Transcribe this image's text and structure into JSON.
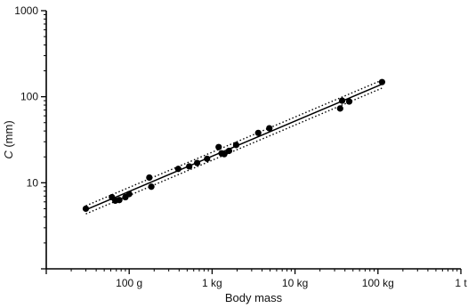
{
  "chart_data": {
    "type": "scatter",
    "xlabel": "Body mass",
    "ylabel": "C (mm)",
    "ylabel_italic": "C",
    "ylabel_rest": " (mm)",
    "x_scale": "log",
    "y_scale": "log",
    "xlim_grams": [
      10,
      1000000
    ],
    "ylim": [
      1,
      1000
    ],
    "x_ticks": [
      {
        "value": 100,
        "label": "100 g"
      },
      {
        "value": 1000,
        "label": "1 kg"
      },
      {
        "value": 10000,
        "label": "10 kg"
      },
      {
        "value": 100000,
        "label": "100 kg"
      },
      {
        "value": 1000000,
        "label": "1 t"
      }
    ],
    "y_ticks": [
      {
        "value": 10,
        "label": "10"
      },
      {
        "value": 100,
        "label": "100"
      },
      {
        "value": 1000,
        "label": "1000"
      }
    ],
    "grid": false,
    "points": [
      {
        "x": 30,
        "y": 5.0
      },
      {
        "x": 62,
        "y": 6.8
      },
      {
        "x": 68,
        "y": 6.2
      },
      {
        "x": 76,
        "y": 6.3
      },
      {
        "x": 90,
        "y": 6.8
      },
      {
        "x": 100,
        "y": 7.4
      },
      {
        "x": 175,
        "y": 11.5
      },
      {
        "x": 185,
        "y": 9.0
      },
      {
        "x": 390,
        "y": 14.5
      },
      {
        "x": 530,
        "y": 15.5
      },
      {
        "x": 660,
        "y": 17.0
      },
      {
        "x": 870,
        "y": 19.0
      },
      {
        "x": 1200,
        "y": 26.0
      },
      {
        "x": 1300,
        "y": 22.0
      },
      {
        "x": 1400,
        "y": 21.5
      },
      {
        "x": 1600,
        "y": 23.5
      },
      {
        "x": 1950,
        "y": 27.5
      },
      {
        "x": 3600,
        "y": 38.0
      },
      {
        "x": 4900,
        "y": 43.0
      },
      {
        "x": 35000,
        "y": 73.0
      },
      {
        "x": 37000,
        "y": 90.0
      },
      {
        "x": 45000,
        "y": 88.0
      },
      {
        "x": 112000,
        "y": 148.0
      }
    ],
    "fit_line": {
      "x": [
        30,
        112000
      ],
      "y": [
        4.85,
        140
      ]
    },
    "upper_band": {
      "x": [
        30,
        112000
      ],
      "y": [
        5.4,
        156
      ]
    },
    "lower_band": {
      "x": [
        30,
        112000
      ],
      "y": [
        4.35,
        126
      ]
    }
  }
}
